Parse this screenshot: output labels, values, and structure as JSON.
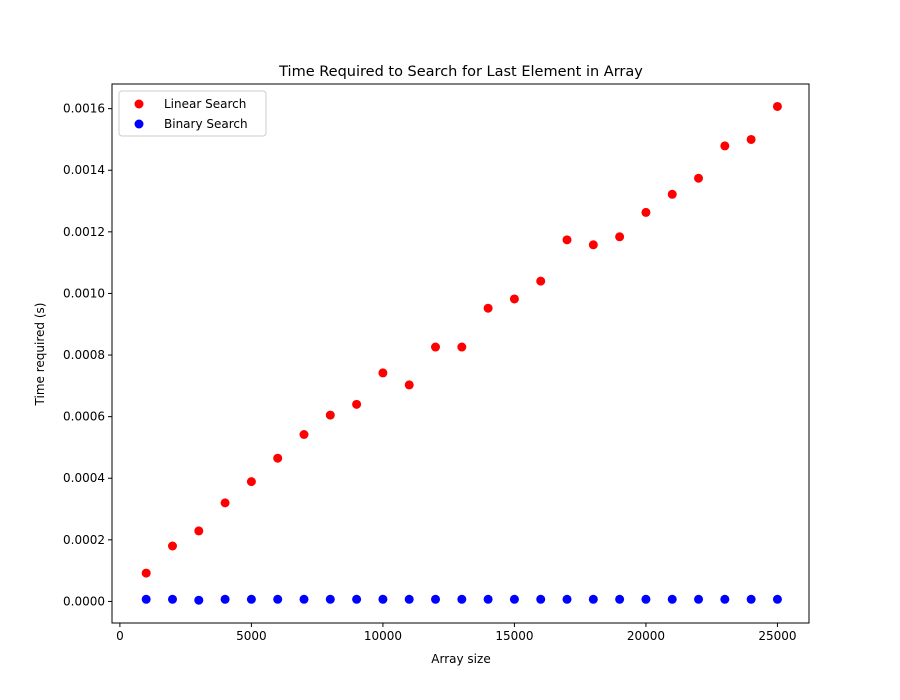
{
  "chart_data": {
    "type": "scatter",
    "title": "Time Required to Search for Last Element in Array",
    "xlabel": "Array size",
    "ylabel": "Time required (s)",
    "xlim": [
      -300,
      26200
    ],
    "ylim": [
      -7e-05,
      0.00168
    ],
    "xticks": [
      0,
      5000,
      10000,
      15000,
      20000,
      25000
    ],
    "xtick_labels": [
      "0",
      "5000",
      "10000",
      "15000",
      "20000",
      "25000"
    ],
    "yticks": [
      0,
      0.0002,
      0.0004,
      0.0006,
      0.0008,
      0.001,
      0.0012,
      0.0014,
      0.0016
    ],
    "ytick_labels": [
      "0.0000",
      "0.0002",
      "0.0004",
      "0.0006",
      "0.0008",
      "0.0010",
      "0.0012",
      "0.0014",
      "0.0016"
    ],
    "grid": false,
    "legend_position": "top-left",
    "x": [
      1000,
      2000,
      3000,
      4000,
      5000,
      6000,
      7000,
      8000,
      9000,
      10000,
      11000,
      12000,
      13000,
      14000,
      15000,
      16000,
      17000,
      18000,
      19000,
      20000,
      21000,
      22000,
      23000,
      24000,
      25000
    ],
    "series": [
      {
        "name": "Linear Search",
        "color": "#ff0000",
        "values": [
          9.2e-05,
          0.00018,
          0.000229,
          0.00032,
          0.000389,
          0.000465,
          0.000542,
          0.000605,
          0.00064,
          0.000742,
          0.000703,
          0.000826,
          0.000826,
          0.000952,
          0.000982,
          0.00104,
          0.001174,
          0.001158,
          0.001184,
          0.001263,
          0.001322,
          0.001374,
          0.001479,
          0.0015,
          0.001607
        ]
      },
      {
        "name": "Binary Search",
        "color": "#0000ff",
        "values": [
          7e-06,
          7e-06,
          4e-06,
          7e-06,
          7e-06,
          7e-06,
          7e-06,
          7e-06,
          7e-06,
          7e-06,
          7e-06,
          7e-06,
          7e-06,
          7e-06,
          7e-06,
          7e-06,
          7e-06,
          7e-06,
          7e-06,
          7e-06,
          7e-06,
          7e-06,
          7e-06,
          7e-06,
          7e-06
        ]
      }
    ]
  }
}
